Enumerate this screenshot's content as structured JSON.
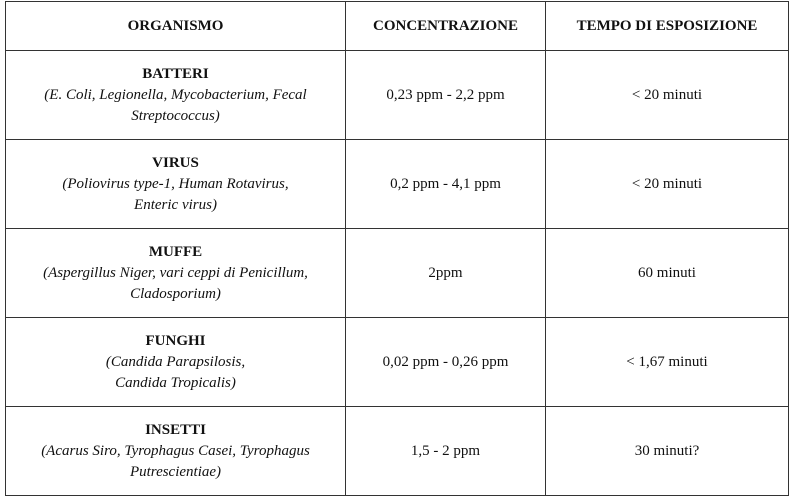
{
  "table": {
    "headers": [
      "ORGANISMO",
      "CONCENTRAZIONE",
      "TEMPO DI ESPOSIZIONE"
    ],
    "rows": [
      {
        "organism": "BATTERI",
        "description": [
          "(E. Coli, Legionella, Mycobacterium, Fecal",
          "Streptococcus)"
        ],
        "concentration": "0,23 ppm - 2,2 ppm",
        "exposure": "< 20 minuti"
      },
      {
        "organism": "VIRUS",
        "description": [
          "(Poliovirus type-1, Human Rotavirus,",
          "Enteric virus)"
        ],
        "concentration": "0,2 ppm - 4,1 ppm",
        "exposure": "< 20 minuti"
      },
      {
        "organism": "MUFFE",
        "description": [
          "(Aspergillus Niger, vari ceppi di Penicillum,",
          "Cladosporium)"
        ],
        "concentration": "2ppm",
        "exposure": "60 minuti"
      },
      {
        "organism": "FUNGHI",
        "description": [
          "(Candida Parapsilosis,",
          "Candida Tropicalis)"
        ],
        "concentration": "0,02 ppm - 0,26 ppm",
        "exposure": "< 1,67 minuti"
      },
      {
        "organism": "INSETTI",
        "description": [
          "(Acarus Siro, Tyrophagus Casei, Tyrophagus",
          "Putrescientiae)"
        ],
        "concentration": "1,5 - 2 ppm",
        "exposure": "30 minuti?"
      }
    ]
  }
}
